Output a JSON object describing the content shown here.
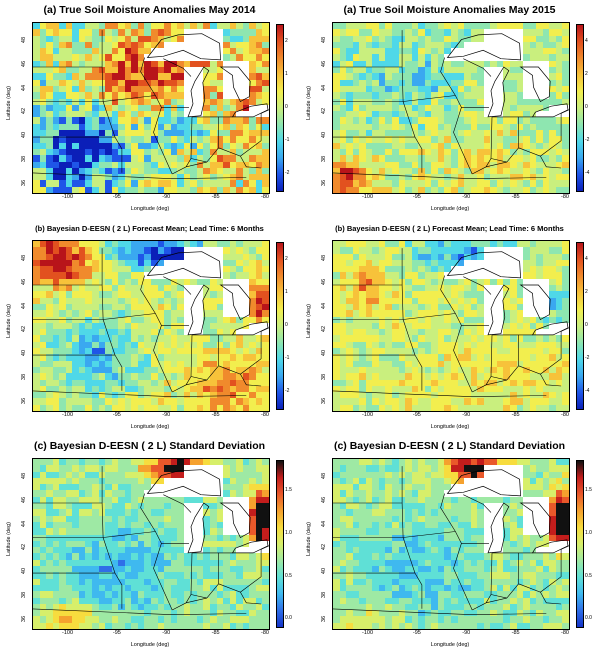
{
  "palette": {
    "anomaly": [
      "#0b1fb8",
      "#1f56e8",
      "#3aa8f0",
      "#4fd8e8",
      "#8ee6b0",
      "#c9ef7e",
      "#f2ee4e",
      "#f7c23a",
      "#f08a2c",
      "#e2511f",
      "#b8141a"
    ],
    "sd": [
      "#1533c8",
      "#2f6fe8",
      "#3fb9ef",
      "#5fe0d6",
      "#9ee9a4",
      "#d7ef6a",
      "#f7dc3e",
      "#f5a12e",
      "#e9582a",
      "#c31d1c",
      "#111111"
    ]
  },
  "panels": [
    {
      "id": "p1",
      "title": "(a) True Soil Moisture Anomalies  May   2014",
      "title_size": "big",
      "xlabel": "Longitude (deg)",
      "ylabel": "Latitude (deg)",
      "xticks": [
        "-100",
        "-95",
        "-90",
        "-85",
        "-80"
      ],
      "yticks": [
        "48",
        "46",
        "44",
        "42",
        "40",
        "38",
        "36"
      ],
      "colorbar_ticks": [
        "2",
        "1",
        "0",
        "-1",
        "-2"
      ],
      "palette": "anomaly",
      "pattern": "a2014"
    },
    {
      "id": "p2",
      "title": "(a) True Soil Moisture Anomalies  May   2015",
      "title_size": "big",
      "xlabel": "Longitude (deg)",
      "ylabel": "Latitude (deg)",
      "xticks": [
        "-100",
        "-95",
        "-90",
        "-85",
        "-80"
      ],
      "yticks": [
        "48",
        "46",
        "44",
        "42",
        "40",
        "38",
        "36"
      ],
      "colorbar_ticks": [
        "4",
        "2",
        "0",
        "-2",
        "-4"
      ],
      "palette": "anomaly",
      "pattern": "a2015"
    },
    {
      "id": "p3",
      "title": "(b) Bayesian D-EESN  ( 2 L)  Forecast Mean; Lead Time:  6  Months",
      "title_size": "small",
      "xlabel": "Longitude (deg)",
      "ylabel": "Latitude (deg)",
      "xticks": [
        "-100",
        "-95",
        "-90",
        "-85",
        "-80"
      ],
      "yticks": [
        "48",
        "46",
        "44",
        "42",
        "40",
        "38",
        "36"
      ],
      "colorbar_ticks": [
        "2",
        "1",
        "0",
        "-1",
        "-2"
      ],
      "palette": "anomaly",
      "pattern": "b2014"
    },
    {
      "id": "p4",
      "title": "(b) Bayesian D-EESN  ( 2 L)  Forecast Mean; Lead Time:  6  Months",
      "title_size": "small",
      "xlabel": "Longitude (deg)",
      "ylabel": "Latitude (deg)",
      "xticks": [
        "-100",
        "-95",
        "-90",
        "-85",
        "-80"
      ],
      "yticks": [
        "48",
        "46",
        "44",
        "42",
        "40",
        "38",
        "36"
      ],
      "colorbar_ticks": [
        "4",
        "2",
        "0",
        "-2",
        "-4"
      ],
      "palette": "anomaly",
      "pattern": "b2015"
    },
    {
      "id": "p5",
      "title": "(c) Bayesian D-EESN  ( 2 L)  Standard Deviation",
      "title_size": "big",
      "xlabel": "Longitude (deg)",
      "ylabel": "Latitude (deg)",
      "xticks": [
        "-100",
        "-95",
        "-90",
        "-85",
        "-80"
      ],
      "yticks": [
        "48",
        "46",
        "44",
        "42",
        "40",
        "38",
        "36"
      ],
      "colorbar_ticks": [
        "1.5",
        "1.0",
        "0.5",
        "0.0"
      ],
      "palette": "sd",
      "pattern": "c2014"
    },
    {
      "id": "p6",
      "title": "(c) Bayesian D-EESN  ( 2 L)  Standard Deviation",
      "title_size": "big",
      "xlabel": "Longitude (deg)",
      "ylabel": "Latitude (deg)",
      "xticks": [
        "-100",
        "-95",
        "-90",
        "-85",
        "-80"
      ],
      "yticks": [
        "48",
        "46",
        "44",
        "42",
        "40",
        "38",
        "36"
      ],
      "colorbar_ticks": [
        "1.5",
        "1.0",
        "0.5",
        "0.0"
      ],
      "palette": "sd",
      "pattern": "c2015"
    }
  ]
}
